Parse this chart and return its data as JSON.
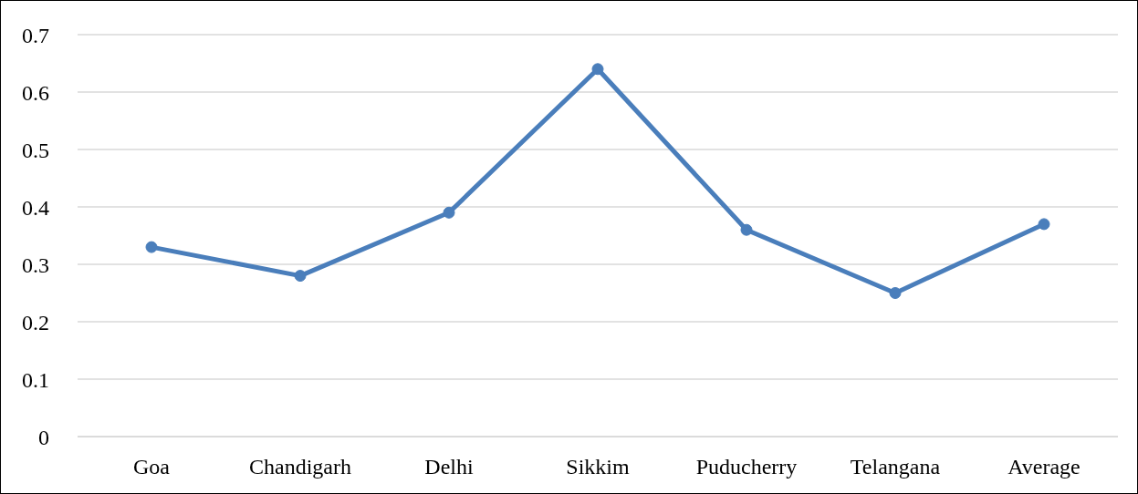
{
  "chart_data": {
    "type": "line",
    "categories": [
      "Goa",
      "Chandigarh",
      "Delhi",
      "Sikkim",
      "Puducherry",
      "Telangana",
      "Average"
    ],
    "series": [
      {
        "color": "#4a7ebb",
        "values": [
          0.33,
          0.28,
          0.39,
          0.64,
          0.36,
          0.25,
          0.37
        ]
      }
    ],
    "ylim": [
      0,
      0.7
    ],
    "yticks": [
      0,
      0.1,
      0.2,
      0.3,
      0.4,
      0.5,
      0.6,
      0.7
    ],
    "grid": "y",
    "marker": "circle",
    "line_style": "solid",
    "legend": false
  }
}
